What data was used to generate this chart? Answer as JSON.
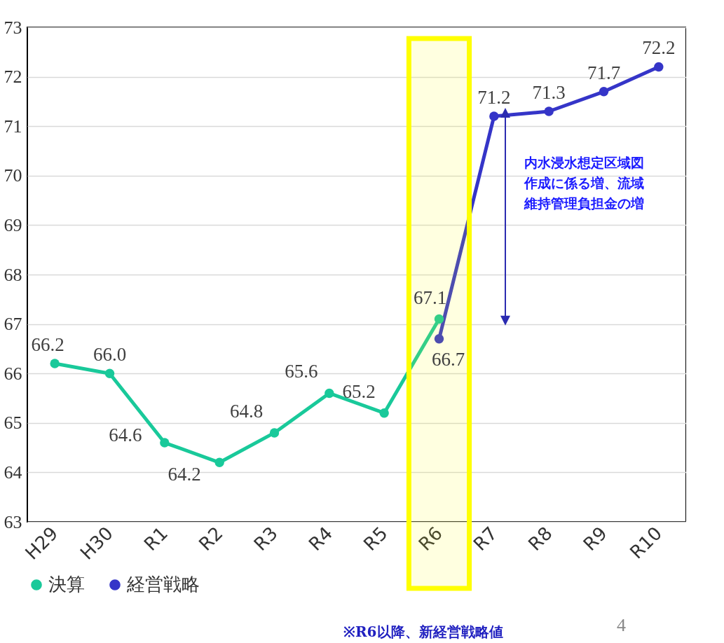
{
  "chart_data": {
    "type": "line",
    "categories": [
      "H29",
      "H30",
      "R1",
      "R2",
      "R3",
      "R4",
      "R5",
      "R6",
      "R7",
      "R8",
      "R9",
      "R10"
    ],
    "series": [
      {
        "name": "決算",
        "color": "#19c99a",
        "values": [
          66.2,
          66.0,
          64.6,
          64.2,
          64.8,
          65.6,
          65.2,
          67.1,
          null,
          null,
          null,
          null
        ],
        "value_labels": [
          "66.2",
          "66.0",
          "64.6",
          "64.2",
          "64.8",
          "65.6",
          "65.2",
          "67.1",
          null,
          null,
          null,
          null
        ]
      },
      {
        "name": "経営戦略",
        "color": "#3535c8",
        "values": [
          null,
          null,
          null,
          null,
          null,
          null,
          null,
          66.7,
          71.2,
          71.3,
          71.7,
          72.2
        ],
        "value_labels": [
          null,
          null,
          null,
          null,
          null,
          null,
          null,
          "66.7",
          "71.2",
          "71.3",
          "71.7",
          "72.2"
        ]
      }
    ],
    "ylim": [
      63,
      73
    ],
    "yticks": [
      63,
      64,
      65,
      66,
      67,
      68,
      69,
      70,
      71,
      72,
      73
    ],
    "grid": "y",
    "legend": "bottom",
    "marker": "circle",
    "line_style": "solid",
    "data_labels": true,
    "bands": [
      {
        "axis": "x",
        "from": "R6",
        "to": "R6",
        "color": "#ffff00"
      }
    ],
    "annotations": [
      "内水浸水想定区域図作成に係る増、流域維持管理負担金の増",
      "※R6以降、新経営戦略値",
      "4"
    ]
  }
}
